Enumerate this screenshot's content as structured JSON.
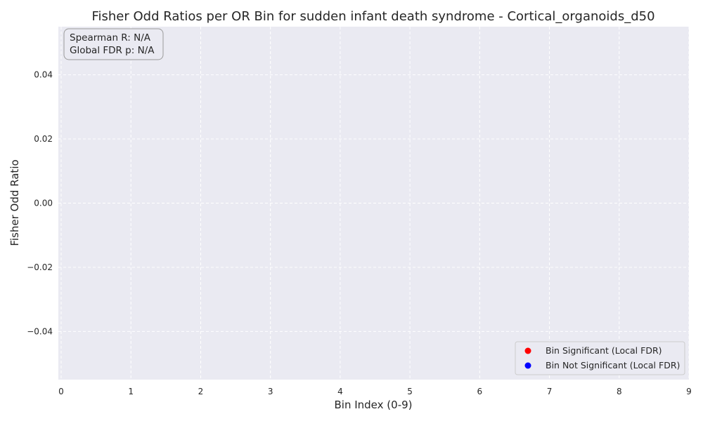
{
  "chart_data": {
    "type": "scatter",
    "title": "Fisher Odd Ratios per OR Bin for sudden infant death syndrome - Cortical_organoids_d50",
    "xlabel": "Bin Index (0-9)",
    "ylabel": "Fisher Odd Ratio",
    "xlim": [
      0,
      9
    ],
    "ylim": [
      -0.055,
      0.055
    ],
    "x_ticks": [
      "0",
      "1",
      "2",
      "3",
      "4",
      "5",
      "6",
      "7",
      "8",
      "9"
    ],
    "x_tick_values": [
      0,
      1,
      2,
      3,
      4,
      5,
      6,
      7,
      8,
      9
    ],
    "y_ticks": [
      "−0.04",
      "−0.02",
      "0.00",
      "0.02",
      "0.04"
    ],
    "y_tick_values": [
      -0.04,
      -0.02,
      0.0,
      0.02,
      0.04
    ],
    "grid": true,
    "legend_placement": "lower-right",
    "series": [
      {
        "name": "Bin Significant (Local FDR)",
        "color": "#ff0000",
        "points": []
      },
      {
        "name": "Bin Not Significant (Local FDR)",
        "color": "#0000ff",
        "points": []
      }
    ],
    "annotations": [
      "Spearman R: N/A",
      "Global FDR p: N/A"
    ]
  },
  "colors": {
    "plot_background": "#eaeaf2",
    "grid": "#ffffff",
    "text": "#262626"
  }
}
